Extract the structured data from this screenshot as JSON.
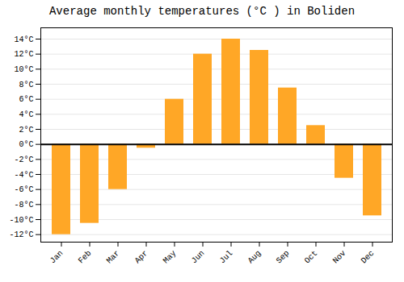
{
  "chart_data": {
    "type": "bar",
    "title": "Average monthly temperatures (°C ) in Boliden",
    "categories": [
      "Jan",
      "Feb",
      "Mar",
      "Apr",
      "May",
      "Jun",
      "Jul",
      "Aug",
      "Sep",
      "Oct",
      "Nov",
      "Dec"
    ],
    "values": [
      -12,
      -10.5,
      -6,
      -0.5,
      6,
      12,
      14,
      12.5,
      7.5,
      2.5,
      -4.5,
      -9.5
    ],
    "color": "#FFA726",
    "ylim": [
      -13,
      15.5
    ],
    "yticks": [
      {
        "value": -12,
        "label": "-12°C"
      },
      {
        "value": -10,
        "label": "-10°C"
      },
      {
        "value": -8,
        "label": "-8°C"
      },
      {
        "value": -6,
        "label": "-6°C"
      },
      {
        "value": -4,
        "label": "-4°C"
      },
      {
        "value": -2,
        "label": "-2°C"
      },
      {
        "value": 0,
        "label": "0°C"
      },
      {
        "value": 2,
        "label": "2°C"
      },
      {
        "value": 4,
        "label": "4°C"
      },
      {
        "value": 6,
        "label": "6°C"
      },
      {
        "value": 8,
        "label": "8°C"
      },
      {
        "value": 10,
        "label": "10°C"
      },
      {
        "value": 12,
        "label": "12°C"
      },
      {
        "value": 14,
        "label": "14°C"
      }
    ],
    "grid": true
  }
}
